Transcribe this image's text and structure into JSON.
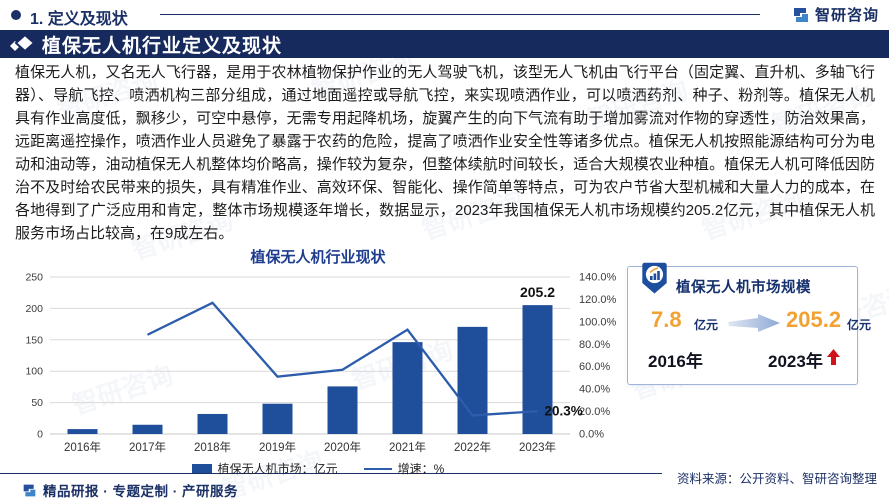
{
  "header": {
    "section_label": "1. 定义及现状",
    "brand_name": "智研咨询"
  },
  "banner": {
    "title": "植保无人机行业定义及现状"
  },
  "body_paragraph": "植保无人机，又名无人飞行器，是用于农林植物保护作业的无人驾驶飞机，该型无人飞机由飞行平台（固定翼、直升机、多轴飞行器）、导航飞控、喷洒机构三部分组成，通过地面遥控或导航飞控，来实现喷洒作业，可以喷洒药剂、种子、粉剂等。植保无人机具有作业高度低，飘移少，可空中悬停，无需专用起降机场，旋翼产生的向下气流有助于增加雾流对作物的穿透性，防治效果高，远距离遥控操作，喷洒作业人员避免了暴露于农药的危险，提高了喷洒作业安全性等诸多优点。植保无人机按照能源结构可分为电动和油动等，油动植保无人机整体均价略高，操作较为复杂，但整体续航时间较长，适合大规模农业种植。植保无人机可降低因防治不及时给农民带来的损失，具有精准作业、高效环保、智能化、操作简单等特点，可为农户节省大型机械和大量人力的成本，在各地得到了广泛应用和肯定，整体市场规模逐年增长，数据显示，2023年我国植保无人机市场规模约205.2亿元，其中植保无人机服务市场占比较高，在9成左右。",
  "chart": {
    "title": "植保无人机行业现状",
    "legend_bar": "植保无人机市场：亿元",
    "legend_line": "增速：%"
  },
  "chart_data": {
    "type": "bar",
    "title": "植保无人机行业现状",
    "categories": [
      "2016年",
      "2017年",
      "2018年",
      "2019年",
      "2020年",
      "2021年",
      "2022年",
      "2023年"
    ],
    "series": [
      {
        "name": "植保无人机市场：亿元",
        "type": "bar",
        "axis": "left",
        "values": [
          7.8,
          14.7,
          31.9,
          48.2,
          75.8,
          146.3,
          170.6,
          205.2
        ]
      },
      {
        "name": "增速：%",
        "type": "line",
        "axis": "right",
        "values": [
          null,
          88.5,
          117.0,
          51.1,
          57.3,
          93.0,
          16.6,
          20.3
        ]
      }
    ],
    "left_axis": {
      "min": 0,
      "max": 250,
      "step": 50
    },
    "right_axis": {
      "min": 0,
      "max": 140,
      "step": 20,
      "suffix": "%",
      "decimals": 1
    },
    "annotations": [
      {
        "series": 0,
        "index": 7,
        "text": "205.2"
      },
      {
        "series": 1,
        "index": 7,
        "text": "20.3%"
      }
    ],
    "grid": true,
    "legend_position": "bottom"
  },
  "card": {
    "title": "植保无人机市场规模",
    "start_value": "7.8",
    "start_unit": "亿元",
    "start_year": "2016年",
    "end_value": "205.2",
    "end_unit": "亿元",
    "end_year": "2023年"
  },
  "footer": {
    "services": "精品研报 · 专题定制 · 产研服务",
    "source": "资料来源：公开资料、智研咨询整理"
  },
  "watermark_text": "智研咨询",
  "colors": {
    "navy": "#172a5e",
    "title_blue": "#1e3d8f",
    "bar": "#1f4e9b",
    "line": "#2c5cab",
    "orange": "#f2a233",
    "red": "#d0121a",
    "grid": "#d9d9d9"
  }
}
